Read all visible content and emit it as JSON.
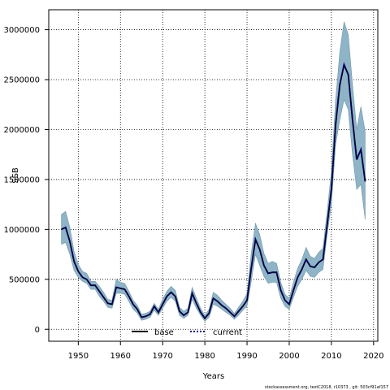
{
  "chart_data": {
    "type": "line",
    "xlabel": "Years",
    "ylabel": "SSB",
    "xlim": [
      1943.0,
      2021.0
    ],
    "ylim": [
      -120000,
      3200000
    ],
    "x_ticks": [
      1950,
      1960,
      1970,
      1980,
      1990,
      2000,
      2010,
      2020
    ],
    "y_ticks": [
      0,
      500000,
      1000000,
      1500000,
      2000000,
      2500000,
      3000000
    ],
    "x_tick_labels": [
      "1950",
      "1960",
      "1970",
      "1980",
      "1990",
      "2000",
      "2010",
      "2020"
    ],
    "y_tick_labels": [
      "0",
      "500000",
      "1000000",
      "1500000",
      "2000000",
      "2500000",
      "3000000"
    ],
    "grid": true,
    "legend_position": "bottom",
    "x": [
      1946,
      1947,
      1948,
      1949,
      1950,
      1951,
      1952,
      1953,
      1954,
      1955,
      1956,
      1957,
      1958,
      1959,
      1960,
      1961,
      1962,
      1963,
      1964,
      1965,
      1966,
      1967,
      1968,
      1969,
      1970,
      1971,
      1972,
      1973,
      1974,
      1975,
      1976,
      1977,
      1978,
      1979,
      1980,
      1981,
      1982,
      1983,
      1984,
      1985,
      1986,
      1987,
      1988,
      1989,
      1990,
      1991,
      1992,
      1993,
      1994,
      1995,
      1996,
      1997,
      1998,
      1999,
      2000,
      2001,
      2002,
      2003,
      2004,
      2005,
      2006,
      2007,
      2008,
      2009,
      2010,
      2011,
      2012,
      2013,
      2014,
      2015,
      2016,
      2017,
      2018
    ],
    "series": [
      {
        "name": "base",
        "color": "#000000",
        "lower": [
          850000,
          870000,
          750000,
          590000,
          520000,
          480000,
          460000,
          400000,
          400000,
          330000,
          280000,
          220000,
          210000,
          360000,
          360000,
          350000,
          280000,
          200000,
          160000,
          90000,
          100000,
          120000,
          190000,
          140000,
          210000,
          280000,
          320000,
          280000,
          140000,
          110000,
          140000,
          300000,
          210000,
          140000,
          80000,
          120000,
          250000,
          230000,
          200000,
          170000,
          140000,
          100000,
          140000,
          190000,
          230000,
          480000,
          750000,
          640000,
          530000,
          460000,
          470000,
          470000,
          310000,
          230000,
          200000,
          320000,
          430000,
          500000,
          590000,
          530000,
          520000,
          570000,
          600000,
          950000,
          1250000,
          1850000,
          2100000,
          2300000,
          2200000,
          1750000,
          1400000,
          1450000,
          1100000
        ],
        "values": [
          1000000,
          1020000,
          880000,
          680000,
          580000,
          520000,
          500000,
          440000,
          440000,
          380000,
          320000,
          260000,
          250000,
          420000,
          410000,
          400000,
          330000,
          250000,
          200000,
          120000,
          130000,
          150000,
          230000,
          170000,
          250000,
          330000,
          370000,
          330000,
          180000,
          140000,
          170000,
          360000,
          260000,
          170000,
          110000,
          160000,
          310000,
          280000,
          240000,
          210000,
          170000,
          130000,
          180000,
          230000,
          290000,
          610000,
          900000,
          800000,
          640000,
          560000,
          570000,
          570000,
          390000,
          290000,
          250000,
          390000,
          520000,
          600000,
          700000,
          630000,
          620000,
          670000,
          700000,
          1050000,
          1400000,
          2050000,
          2450000,
          2650000,
          2550000,
          2100000,
          1700000,
          1800000,
          1480000
        ],
        "upper": [
          1150000,
          1180000,
          1020000,
          780000,
          650000,
          580000,
          560000,
          480000,
          480000,
          430000,
          370000,
          300000,
          290000,
          500000,
          470000,
          460000,
          380000,
          290000,
          240000,
          150000,
          160000,
          180000,
          260000,
          200000,
          300000,
          380000,
          430000,
          390000,
          220000,
          180000,
          210000,
          420000,
          310000,
          210000,
          140000,
          200000,
          370000,
          340000,
          290000,
          250000,
          210000,
          160000,
          220000,
          280000,
          360000,
          760000,
          1060000,
          950000,
          760000,
          660000,
          680000,
          660000,
          470000,
          350000,
          310000,
          470000,
          610000,
          700000,
          820000,
          730000,
          710000,
          770000,
          810000,
          1180000,
          1580000,
          2300000,
          2780000,
          3080000,
          2950000,
          2450000,
          2000000,
          2230000,
          1980000
        ]
      },
      {
        "name": "current",
        "color": "#00008b",
        "values": [
          1000000,
          1020000,
          880000,
          680000,
          580000,
          520000,
          500000,
          440000,
          440000,
          380000,
          320000,
          260000,
          250000,
          420000,
          410000,
          400000,
          330000,
          250000,
          200000,
          120000,
          130000,
          150000,
          230000,
          170000,
          250000,
          330000,
          370000,
          330000,
          180000,
          140000,
          170000,
          360000,
          260000,
          170000,
          110000,
          160000,
          310000,
          280000,
          240000,
          210000,
          170000,
          130000,
          180000,
          230000,
          290000,
          610000,
          900000,
          800000,
          640000,
          560000,
          570000,
          570000,
          390000,
          290000,
          250000,
          390000,
          520000,
          600000,
          700000,
          630000,
          620000,
          670000,
          700000,
          1050000,
          1400000,
          2050000,
          2450000,
          2650000,
          2550000,
          2100000,
          1700000,
          1800000,
          1480000
        ]
      }
    ],
    "band_color": "#8fb4c7",
    "band_edge_color": "#6f97ab"
  },
  "legend": {
    "base_label": "base",
    "current_label": "current"
  },
  "footer": {
    "text": "stockassessment.org, testC2018, r10373 , git: 503cf91af157"
  }
}
